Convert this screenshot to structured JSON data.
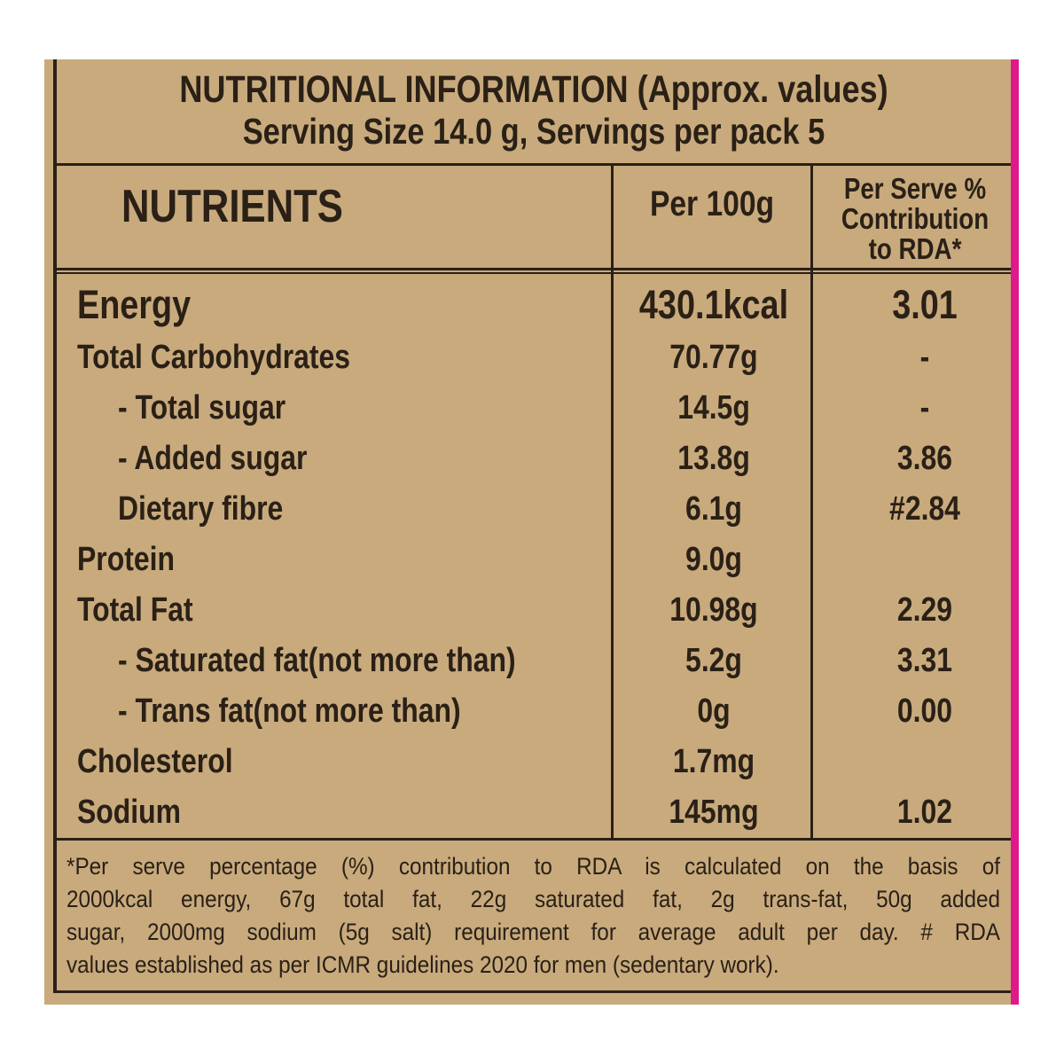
{
  "header": {
    "title": "NUTRITIONAL INFORMATION (Approx. values)",
    "subtitle": "Serving Size 14.0 g, Servings per pack 5"
  },
  "table": {
    "columns": [
      "NUTRIENTS",
      "Per 100g",
      [
        "Per Serve %",
        "Contribution",
        "to RDA*"
      ]
    ],
    "rows": [
      [
        "Energy",
        "430.1kcal",
        "3.01"
      ],
      [
        "Total Carbohydrates",
        "70.77g",
        "-"
      ],
      [
        "- Total sugar",
        "14.5g",
        "-"
      ],
      [
        "- Added sugar",
        "13.8g",
        "3.86"
      ],
      [
        "Dietary fibre",
        "6.1g",
        "#2.84"
      ],
      [
        "Protein",
        "9.0g",
        null
      ],
      [
        "Total Fat",
        "10.98g",
        "2.29"
      ],
      [
        "- Saturated fat(not more than)",
        "5.2g",
        "3.31"
      ],
      [
        "- Trans fat(not more than)",
        "0g",
        "0.00"
      ],
      [
        "Cholesterol",
        "1.7mg",
        null
      ],
      [
        "Sodium",
        "145mg",
        "1.02"
      ]
    ]
  },
  "footnote": [
    "*Per serve percentage (%) contribution to RDA is calculated on the basis of",
    "2000kcal energy, 67g total fat, 22g saturated fat, 2g trans-fat, 50g added",
    "sugar, 2000mg sodium (5g salt) requirement for average adult per day. # RDA",
    "values established as per ICMR guidelines 2020 for men (sedentary work)."
  ]
}
